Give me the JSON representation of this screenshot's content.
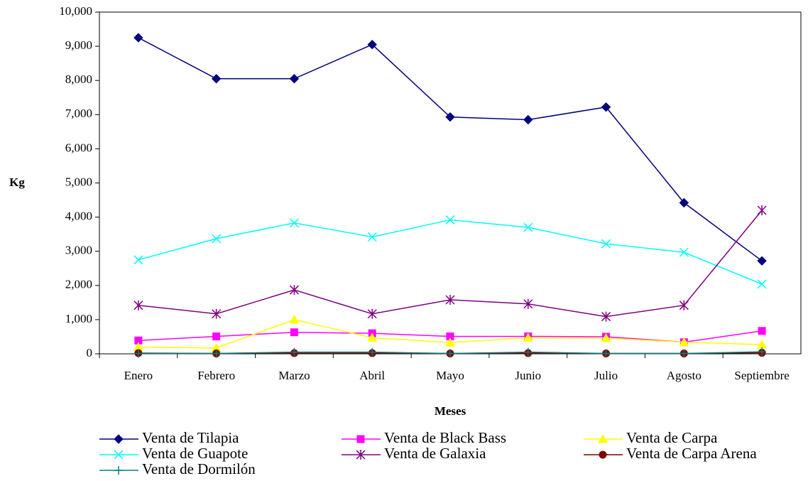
{
  "chart_data": {
    "type": "line",
    "x_label": "Meses",
    "y_label": "Kg",
    "categories": [
      "Enero",
      "Febrero",
      "Marzo",
      "Abril",
      "Mayo",
      "Junio",
      "Julio",
      "Agosto",
      "Septiembre"
    ],
    "series": [
      {
        "name": "Venta de Tilapia",
        "color": "#000080",
        "marker": "diamond",
        "values": [
          9250,
          8050,
          8050,
          9050,
          6930,
          6850,
          7220,
          4420,
          2720
        ]
      },
      {
        "name": "Venta de Black Bass",
        "color": "#ff00ff",
        "marker": "square",
        "values": [
          390,
          510,
          630,
          600,
          510,
          510,
          500,
          340,
          670
        ]
      },
      {
        "name": "Venta de Carpa",
        "color": "#ffff00",
        "marker": "triangle",
        "values": [
          200,
          170,
          1000,
          470,
          330,
          470,
          460,
          340,
          270
        ]
      },
      {
        "name": "Venta de Guapote",
        "color": "#00ffff",
        "marker": "x",
        "values": [
          2750,
          3370,
          3830,
          3420,
          3920,
          3700,
          3220,
          2970,
          2040
        ]
      },
      {
        "name": "Venta de Galaxia",
        "color": "#800080",
        "marker": "asterisk",
        "values": [
          1420,
          1170,
          1870,
          1170,
          1580,
          1460,
          1090,
          1420,
          4200
        ]
      },
      {
        "name": "Venta de Carpa Arena",
        "color": "#800000",
        "marker": "circle",
        "values": [
          20,
          10,
          20,
          20,
          10,
          20,
          10,
          10,
          30
        ]
      },
      {
        "name": "Venta de Dormilón",
        "color": "#008080",
        "marker": "plus",
        "values": [
          10,
          10,
          50,
          50,
          10,
          50,
          10,
          10,
          60
        ]
      }
    ],
    "ylim": [
      0,
      10000
    ],
    "yticks": [
      0,
      {
        "value": 1000,
        "label": "1,000"
      },
      {
        "value": 2000,
        "label": "2,000"
      },
      {
        "value": 3000,
        "label": "3,000"
      },
      {
        "value": 4000,
        "label": "4,000"
      },
      {
        "value": 5000,
        "label": "5,000"
      },
      {
        "value": 6000,
        "label": "6,000"
      },
      {
        "value": 7000,
        "label": "7,000"
      },
      {
        "value": 8000,
        "label": "8,000"
      },
      {
        "value": 9000,
        "label": "9,000"
      },
      {
        "value": 10000,
        "label": "10,000"
      }
    ],
    "grid": false,
    "legend": "bottom"
  }
}
